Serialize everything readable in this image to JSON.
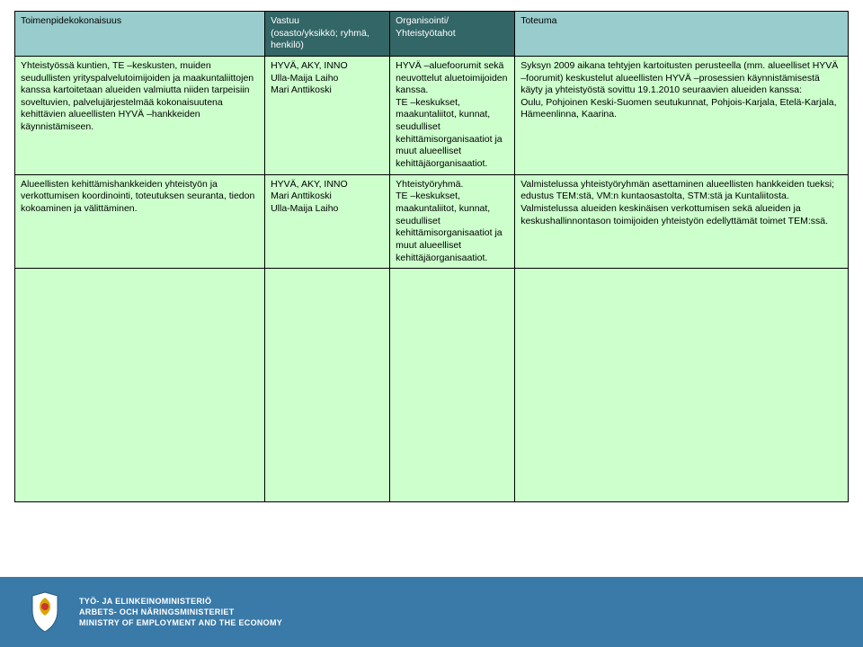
{
  "headers": {
    "c1": "Toimenpidekokonaisuus",
    "c2": "Vastuu\n(osasto/yksikkö; ryhmä, henkilö)",
    "c3": "Organisointi/\nYhteistyötahot",
    "c4": "Toteuma"
  },
  "rows": [
    {
      "c1": "Yhteistyössä kuntien, TE –keskusten, muiden seudullisten yrityspalvelutoimijoiden ja maakuntaliittojen kanssa kartoitetaan alueiden valmiutta niiden tarpeisiin soveltuvien, palvelujärjestelmää kokonaisuutena kehittävien alueellisten HYVÄ –hankkeiden käynnistämiseen.",
      "c2": "HYVÄ, AKY, INNO\nUlla-Maija Laiho\nMari Anttikoski",
      "c3": "HYVÄ –aluefoorumit sekä neuvottelut aluetoimijoiden kanssa.\nTE –keskukset, maakuntaliitot, kunnat, seudulliset kehittämisorganisaatiot ja muut alueelliset kehittäjäorganisaatiot.",
      "c4": "Syksyn 2009 aikana tehtyjen kartoitusten perusteella (mm. alueelliset HYVÄ –foorumit) keskustelut alueellisten HYVÄ –prosessien käynnistämisestä käyty ja yhteistyöstä sovittu 19.1.2010 seuraavien alueiden kanssa:\nOulu, Pohjoinen Keski-Suomen seutukunnat, Pohjois-Karjala, Etelä-Karjala, Hämeenlinna, Kaarina."
    },
    {
      "c1": "Alueellisten kehittämishankkeiden yhteistyön ja verkottumisen koordinointi, toteutuksen seuranta, tiedon kokoaminen ja välittäminen.",
      "c2": "HYVÄ, AKY, INNO\nMari Anttikoski\nUlla-Maija Laiho",
      "c3": "Yhteistyöryhmä.\nTE –keskukset, maakuntaliitot, kunnat, seudulliset kehittämisorganisaatiot ja muut alueelliset kehittäjäorganisaatiot.",
      "c4": "Valmistelussa yhteistyöryhmän asettaminen alueellisten hankkeiden tueksi; edustus TEM:stä, VM:n kuntaosastolta, STM:stä ja Kuntaliitosta. Valmistelussa alueiden keskinäisen verkottumisen sekä alueiden ja keskushallinnontason toimijoiden yhteistyön edellyttämät toimet TEM:ssä."
    }
  ],
  "footer": {
    "line1": "TYÖ- JA ELINKEINOMINISTERIÖ",
    "line2": "ARBETS- OCH NÄRINGSMINISTERIET",
    "line3": "MINISTRY OF EMPLOYMENT AND THE ECONOMY"
  }
}
